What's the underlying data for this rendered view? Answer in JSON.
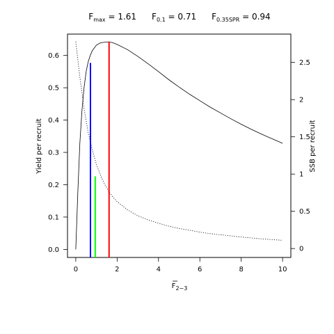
{
  "chart_data": {
    "type": "line",
    "title": {
      "fmax": {
        "label": "F",
        "sub": "max",
        "eq": " = ",
        "value": "1.61"
      },
      "f01": {
        "label": "F",
        "sub": "0.1",
        "eq": " = ",
        "value": "0.71"
      },
      "f035": {
        "label": "F",
        "sub": "0.35SPR",
        "eq": " = ",
        "value": "0.94"
      }
    },
    "xlabel": {
      "main": "F",
      "sub": "2−3"
    },
    "ylabel_left": "Yield per recruit",
    "ylabel_right": "SSB per recruit",
    "xlim": [
      -0.4,
      10.4
    ],
    "ylim_left": [
      -0.025,
      0.666
    ],
    "ylim_right": [
      -0.12,
      2.88
    ],
    "x_ticks": [
      "0",
      "2",
      "4",
      "6",
      "8",
      "10"
    ],
    "y_left_ticks": [
      "0.0",
      "0.1",
      "0.2",
      "0.3",
      "0.4",
      "0.5",
      "0.6"
    ],
    "y_right_ticks": [
      "0",
      "0.5",
      "1",
      "1.5",
      "2",
      "2.5"
    ],
    "grid": false,
    "series": [
      {
        "axis": "left",
        "style": "solid",
        "color": "#000000",
        "x": [
          0,
          0.1,
          0.2,
          0.3,
          0.4,
          0.5,
          0.6,
          0.7,
          0.8,
          1.0,
          1.2,
          1.4,
          1.61,
          1.8,
          2.0,
          2.5,
          3.0,
          3.5,
          4.0,
          4.5,
          5.0,
          5.5,
          6.0,
          6.5,
          7.0,
          7.5,
          8.0,
          8.5,
          9.0,
          9.5,
          10.0
        ],
        "y": [
          0.0,
          0.18,
          0.33,
          0.43,
          0.5,
          0.55,
          0.58,
          0.6,
          0.615,
          0.632,
          0.639,
          0.641,
          0.642,
          0.639,
          0.634,
          0.618,
          0.597,
          0.574,
          0.55,
          0.525,
          0.502,
          0.48,
          0.46,
          0.44,
          0.422,
          0.404,
          0.387,
          0.371,
          0.356,
          0.342,
          0.328
        ]
      },
      {
        "axis": "right",
        "style": "dotted",
        "color": "#000000",
        "x": [
          0,
          0.2,
          0.4,
          0.6,
          0.8,
          1.0,
          1.2,
          1.4,
          1.61,
          1.8,
          2.0,
          2.5,
          3.0,
          3.5,
          4.0,
          4.5,
          5.0,
          5.5,
          6.0,
          6.5,
          7.0,
          7.5,
          8.0,
          8.5,
          9.0,
          9.5,
          10.0
        ],
        "y": [
          2.78,
          2.3,
          1.88,
          1.56,
          1.32,
          1.13,
          0.98,
          0.86,
          0.76,
          0.69,
          0.63,
          0.52,
          0.44,
          0.385,
          0.34,
          0.3,
          0.27,
          0.245,
          0.22,
          0.2,
          0.185,
          0.17,
          0.155,
          0.142,
          0.13,
          0.12,
          0.11
        ]
      }
    ],
    "reference_lines": [
      {
        "name": "F0.1",
        "x": 0.71,
        "y_top": 0.577,
        "axis": "left",
        "color": "#0000ff"
      },
      {
        "name": "F0.35SPR",
        "x": 0.94,
        "y_top": 0.226,
        "axis": "left",
        "color": "#00ff00"
      },
      {
        "name": "Fmax",
        "x": 1.61,
        "y_top": 0.642,
        "axis": "left",
        "color": "#ff0000"
      }
    ]
  }
}
